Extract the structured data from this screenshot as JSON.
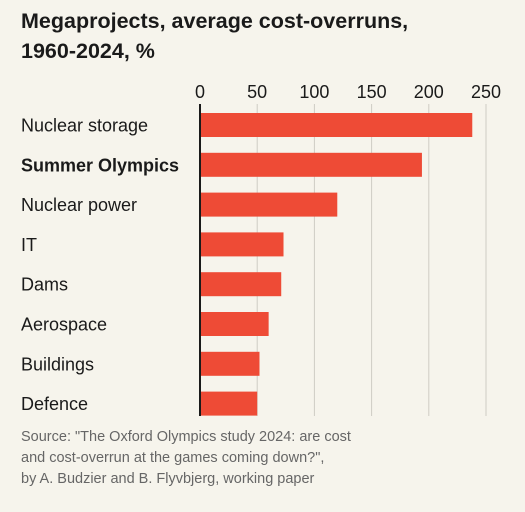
{
  "title_lines": [
    "Megaprojects, average cost-overruns,",
    "1960-2024, %"
  ],
  "source_lines": [
    "Source: \"The Oxford Olympics study 2024: are cost",
    "and cost-overrun at the games coming down?\",",
    "by A. Budzier and B. Flyvbjerg, working paper"
  ],
  "colors": {
    "bar": "#ee4b36",
    "axis": "#1a1a1a",
    "grid": "#cfccc4",
    "background": "#f6f4ec"
  },
  "chart_data": {
    "type": "bar",
    "orientation": "horizontal",
    "title": "Megaprojects, average cost-overruns, 1960-2024, %",
    "xlabel": "",
    "ylabel": "",
    "xlim": [
      0,
      250
    ],
    "xticks": [
      0,
      50,
      100,
      150,
      200,
      250
    ],
    "categories": [
      "Nuclear storage",
      "Summer Olympics",
      "Nuclear power",
      "IT",
      "Dams",
      "Aerospace",
      "Buildings",
      "Defence"
    ],
    "highlight": "Summer Olympics",
    "values": [
      238,
      194,
      120,
      73,
      71,
      60,
      52,
      50
    ],
    "grid": true,
    "legend": "none"
  }
}
